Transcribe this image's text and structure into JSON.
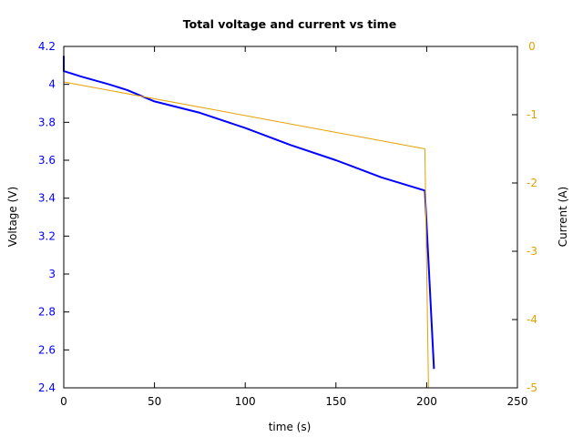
{
  "chart_data": {
    "type": "line",
    "title": "Total voltage and current vs time",
    "xlabel": "time (s)",
    "ylabel": "Voltage (V)",
    "y2label": "Current (A)",
    "xlim": [
      0,
      250
    ],
    "ylim": [
      2.4,
      4.2
    ],
    "y2lim": [
      -5,
      0
    ],
    "xticks": [
      "0",
      "50",
      "100",
      "150",
      "200",
      "250"
    ],
    "yticks": [
      "2.4",
      "2.6",
      "2.8",
      "3",
      "3.2",
      "3.4",
      "3.6",
      "3.8",
      "4",
      "4.2"
    ],
    "y2ticks": [
      "-5",
      "-4",
      "-3",
      "-2",
      "-1",
      "0"
    ],
    "grid": false,
    "legend": null,
    "series": [
      {
        "name": "Voltage",
        "axis": "left",
        "color": "#0000ff",
        "x": [
          0,
          0,
          10,
          25,
          35,
          50,
          75,
          100,
          125,
          150,
          175,
          199,
          204
        ],
        "values": [
          4.15,
          4.07,
          4.04,
          4.0,
          3.97,
          3.91,
          3.85,
          3.77,
          3.68,
          3.6,
          3.51,
          3.44,
          2.5
        ]
      },
      {
        "name": "Current",
        "axis": "right",
        "color": "#e6a000",
        "x": [
          0,
          199,
          201
        ],
        "values": [
          -0.52,
          -1.5,
          -5.0
        ]
      }
    ]
  }
}
